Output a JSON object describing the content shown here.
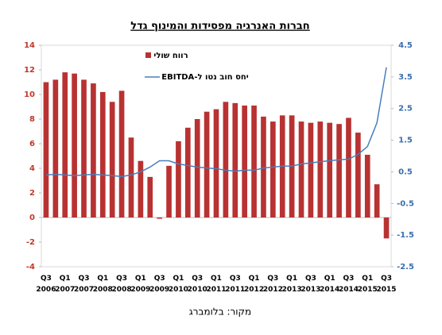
{
  "chart_data": {
    "type": "bar_line",
    "title": "חברות האנרגיה מפסידות והמינוף גדל",
    "source": "מקור: בלומברג",
    "categories": [
      [
        "Q3",
        "2006"
      ],
      null,
      [
        "Q1",
        "2007"
      ],
      null,
      [
        "Q3",
        "2007"
      ],
      null,
      [
        "Q1",
        "2008"
      ],
      null,
      [
        "Q3",
        "2008"
      ],
      null,
      [
        "Q1",
        "2009"
      ],
      null,
      [
        "Q3",
        "2009"
      ],
      null,
      [
        "Q1",
        "2010"
      ],
      null,
      [
        "Q3",
        "2010"
      ],
      null,
      [
        "Q1",
        "2011"
      ],
      null,
      [
        "Q3",
        "2011"
      ],
      null,
      [
        "Q1",
        "2012"
      ],
      null,
      [
        "Q3",
        "2012"
      ],
      null,
      [
        "Q1",
        "2013"
      ],
      null,
      [
        "Q3",
        "2013"
      ],
      null,
      [
        "Q1",
        "2014"
      ],
      null,
      [
        "Q3",
        "2014"
      ],
      null,
      [
        "Q1",
        "2015"
      ],
      null,
      [
        "Q3",
        "2015"
      ]
    ],
    "series": [
      {
        "name": "רווח שולי",
        "type": "bar",
        "color": "#b83232",
        "values": [
          11.0,
          11.2,
          11.8,
          11.7,
          11.2,
          10.9,
          10.2,
          9.4,
          10.3,
          6.5,
          4.6,
          3.3,
          -0.1,
          4.2,
          6.2,
          7.3,
          8.0,
          8.6,
          8.8,
          9.4,
          9.3,
          9.1,
          9.1,
          8.2,
          7.8,
          8.3,
          8.3,
          7.8,
          7.7,
          7.8,
          7.7,
          7.6,
          8.1,
          6.9,
          5.1,
          2.7,
          -1.7
        ]
      },
      {
        "name": "יחס חוב נטו ל-EBITDA",
        "type": "line",
        "axis": "y2",
        "color": "#4a7ebb",
        "values": [
          0.4,
          0.42,
          0.4,
          0.38,
          0.4,
          0.42,
          0.4,
          0.38,
          0.35,
          0.4,
          0.5,
          0.65,
          0.85,
          0.85,
          0.75,
          0.7,
          0.65,
          0.62,
          0.6,
          0.55,
          0.52,
          0.55,
          0.55,
          0.62,
          0.65,
          0.68,
          0.68,
          0.75,
          0.78,
          0.82,
          0.85,
          0.88,
          0.9,
          1.05,
          1.3,
          2.05,
          3.8
        ]
      }
    ],
    "ylim": [
      -4,
      14
    ],
    "yticks": [
      -4,
      -2,
      0,
      2,
      4,
      6,
      8,
      10,
      12,
      14
    ],
    "y2lim": [
      -2.5,
      4.5
    ],
    "y2ticks": [
      -2.5,
      -1.5,
      -0.5,
      0.5,
      1.5,
      2.5,
      3.5,
      4.5
    ],
    "ycolor": "#c0392b",
    "y2color": "#3a6fb0"
  }
}
